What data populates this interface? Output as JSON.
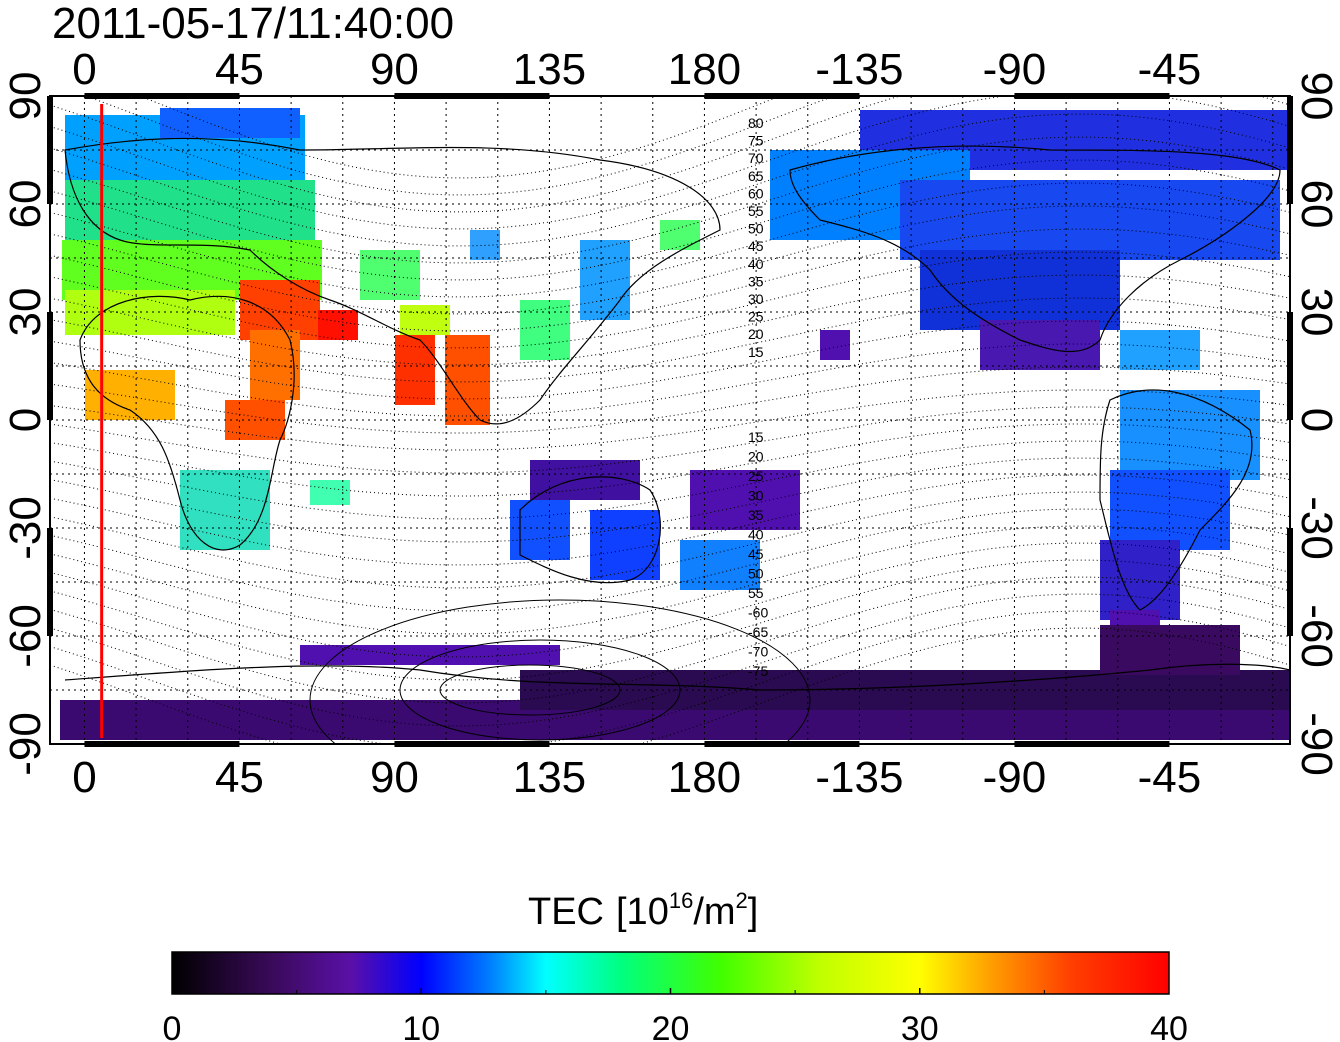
{
  "title": "2011-05-17/11:40:00",
  "colorbar": {
    "label_prefix": "TEC",
    "unit_open": "[10",
    "unit_exp": "16",
    "unit_mid": "/m",
    "unit_exp2": "2",
    "unit_close": "]",
    "min": 0,
    "max": 40,
    "ticks": [
      "0",
      "10",
      "20",
      "30",
      "40"
    ],
    "colors": [
      "#000000",
      "#3a0a5a",
      "#5a10a8",
      "#0000ff",
      "#0080ff",
      "#00ffff",
      "#00ff80",
      "#40ff00",
      "#c0ff00",
      "#ffff00",
      "#ffa000",
      "#ff4000",
      "#ff0000"
    ]
  },
  "map": {
    "top_lon_ticks": [
      "0",
      "45",
      "90",
      "135",
      "180",
      "-135",
      "-90",
      "-45"
    ],
    "bottom_lon_ticks": [
      "0",
      "45",
      "90",
      "135",
      "180",
      "-135",
      "-90",
      "-45"
    ],
    "left_lat_ticks": [
      "90",
      "60",
      "30",
      "0",
      "-30",
      "-60",
      "-90"
    ],
    "right_lat_ticks": [
      "90",
      "60",
      "30",
      "0",
      "-30",
      "-60",
      "-90"
    ],
    "tick_lon_values": [
      0,
      45,
      90,
      135,
      180,
      225,
      270,
      315
    ],
    "tick_lat_values": [
      90,
      60,
      30,
      0,
      -30,
      -60,
      -90
    ],
    "lon_range": [
      -10,
      350
    ],
    "lat_range": [
      -90,
      90
    ],
    "grid": true,
    "meridian_longitude": 5,
    "meridian_color": "#ff0000",
    "magnetic_lat_labels_north": [
      "80",
      "75",
      "70",
      "65",
      "60",
      "55",
      "50",
      "45",
      "40",
      "35",
      "30",
      "25",
      "20",
      "15"
    ],
    "magnetic_lat_labels_south": [
      "15",
      "20",
      "25",
      "30",
      "35",
      "40",
      "45",
      "50",
      "55",
      "-60",
      "-65",
      "-70",
      "-75"
    ]
  }
}
